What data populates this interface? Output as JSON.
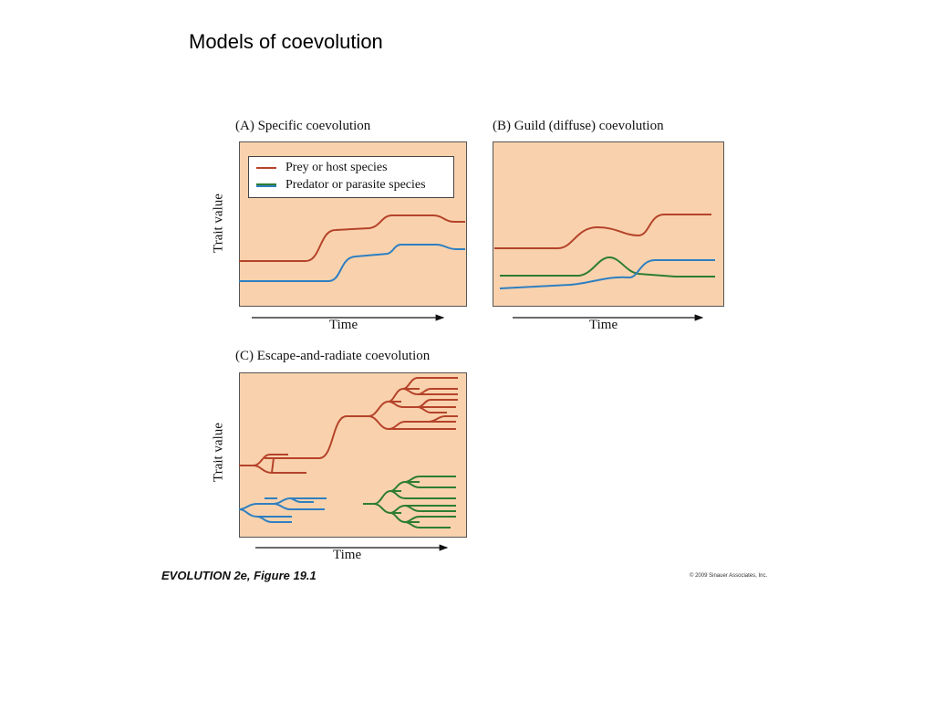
{
  "slide": {
    "title": "Models of coevolution"
  },
  "colors": {
    "panel_bg": "#f9d2ad",
    "prey": "#b5432a",
    "predator_blue": "#2f7fc1",
    "predator_green": "#2e7d32"
  },
  "panels": {
    "a": {
      "title": "(A) Specific coevolution",
      "ylabel": "Trait value",
      "xlabel": "Time"
    },
    "b": {
      "title": "(B) Guild (diffuse) coevolution",
      "xlabel": "Time"
    },
    "c": {
      "title": "(C) Escape-and-radiate coevolution",
      "ylabel": "Trait value",
      "xlabel": "Time"
    }
  },
  "legend": {
    "prey": "Prey or host species",
    "predator": "Predator or parasite species"
  },
  "footer": {
    "caption": "EVOLUTION 2e, Figure 19.1",
    "credit": "© 2009 Sinauer Associates, Inc."
  }
}
